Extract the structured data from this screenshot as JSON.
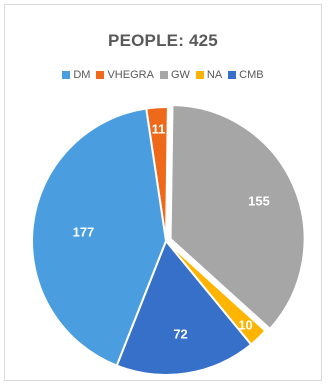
{
  "chart_data": {
    "type": "pie",
    "title": "PEOPLE: 425",
    "legend_position": "top",
    "categories": [
      "DM",
      "VHEGRA",
      "GW",
      "NA",
      "CMB"
    ],
    "values": [
      177,
      11,
      155,
      10,
      72
    ],
    "colors": [
      "#4a9ddf",
      "#ee6a1a",
      "#a6a6a6",
      "#ffb500",
      "#3670c9"
    ],
    "data_labels": [
      "177",
      "11",
      "155",
      "10",
      "72"
    ]
  }
}
